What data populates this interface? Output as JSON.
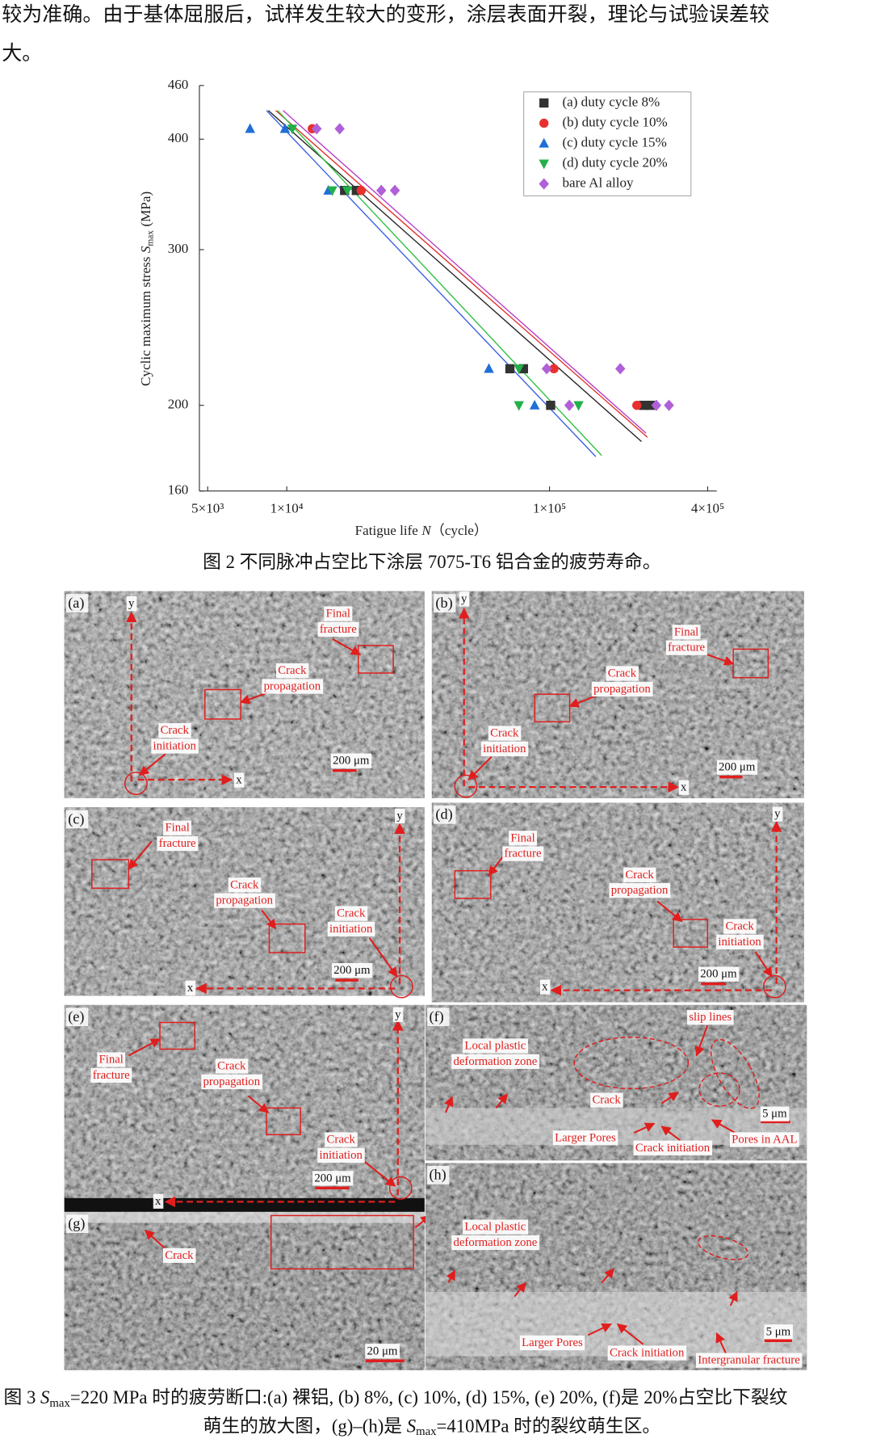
{
  "text": {
    "lines": [
      "较为准确。由于基体屈服后，试样发生较大的变形，涂层表面开裂，理论与试验误差较",
      "大。"
    ]
  },
  "chart_data": {
    "type": "scatter",
    "log_x": true,
    "log_y": true,
    "xlabel": "Fatigue life",
    "xlabel_symbol": "N",
    "xlabel_unit": "（cycle）",
    "ylabel": "Cyclic maximum stress",
    "ylabel_symbol": "S",
    "ylabel_sub": "max",
    "ylabel_unit": "(MPa)",
    "xlim": [
      4650,
      433000
    ],
    "ylim": [
      160,
      460
    ],
    "xticks": [
      {
        "value": 5000,
        "label": "5×10³"
      },
      {
        "value": 10000,
        "label": "1×10⁴"
      },
      {
        "value": 100000,
        "label": "1×10⁵"
      },
      {
        "value": 400000,
        "label": "4×10⁵"
      }
    ],
    "yticks": [
      160,
      200,
      300,
      400,
      460
    ],
    "legend": "upper right",
    "series": [
      {
        "name": "(a) duty cycle 8%",
        "color": "#333333",
        "line_color": "#222222",
        "marker": "square",
        "x": [
          16600,
          18400,
          70700,
          79600,
          101000,
          228000,
          242000
        ],
        "values": [
          350,
          350,
          220,
          220,
          200,
          200,
          200
        ],
        "fit_x": [
          8510,
          224000
        ],
        "fit_y": [
          431,
          182
        ]
      },
      {
        "name": "(b) duty cycle 10%",
        "color": "#e8312f",
        "line_color": "#e0302a",
        "marker": "circle",
        "x": [
          12500,
          19200,
          104000,
          215000
        ],
        "values": [
          411,
          350,
          220,
          200
        ],
        "fit_x": [
          9080,
          236000
        ],
        "fit_y": [
          431,
          184
        ]
      },
      {
        "name": "(c) duty cycle 15%",
        "color": "#1f6fd6",
        "line_color": "#3a5fe0",
        "marker": "triangle",
        "x": [
          7250,
          9840,
          14400,
          58800,
          87800
        ],
        "values": [
          411,
          411,
          350,
          220,
          200
        ],
        "fit_x": [
          8370,
          150000
        ],
        "fit_y": [
          431,
          175
        ]
      },
      {
        "name": "(d) duty cycle 20%",
        "color": "#22b04a",
        "line_color": "#2ec040",
        "marker": "down",
        "x": [
          10500,
          14900,
          17000,
          76500,
          76500,
          129000
        ],
        "values": [
          411,
          350,
          350,
          220,
          200,
          200
        ],
        "fit_x": [
          9230,
          158000
        ],
        "fit_y": [
          431,
          175.5
        ]
      },
      {
        "name": "bare Al alloy",
        "color": "#b060d8",
        "line_color": "#b83cc8",
        "marker": "diamond",
        "x": [
          13000,
          15900,
          22900,
          25800,
          97600,
          186000,
          119000,
          255000,
          285000
        ],
        "values": [
          411,
          411,
          350,
          350,
          220,
          220,
          200,
          200,
          200
        ],
        "fit_x": [
          9680,
          233000
        ],
        "fit_y": [
          431,
          186
        ]
      }
    ]
  },
  "caption2": "图 2 不同脉冲占空比下涂层 7075-T6 铝合金的疲劳寿命。",
  "panels": [
    {
      "letter": "(a)",
      "labels": [
        [
          "Final",
          "fracture"
        ],
        [
          "Crack",
          "propagation"
        ],
        [
          "Crack",
          "initiation"
        ],
        [
          "200 μm"
        ],
        [
          "x"
        ],
        [
          "y"
        ]
      ]
    },
    {
      "letter": "(b)",
      "labels": [
        [
          "Final",
          "fracture"
        ],
        [
          "Crack",
          "propagation"
        ],
        [
          "Crack",
          "initiation"
        ],
        [
          "200 μm"
        ],
        [
          "x"
        ],
        [
          "y"
        ]
      ]
    },
    {
      "letter": "(c)",
      "labels": [
        [
          "Final",
          "fracture"
        ],
        [
          "Crack",
          "propagation"
        ],
        [
          "Crack",
          "initiation"
        ],
        [
          "200 μm"
        ],
        [
          "x"
        ],
        [
          "y"
        ]
      ]
    },
    {
      "letter": "(d)",
      "labels": [
        [
          "Final",
          "fracture"
        ],
        [
          "Crack",
          "propagation"
        ],
        [
          "Crack",
          "initiation"
        ],
        [
          "200 μm"
        ],
        [
          "x"
        ],
        [
          "y"
        ]
      ]
    },
    {
      "letter": "(e)",
      "labels": [
        [
          "Final",
          "fracture"
        ],
        [
          "Crack",
          "propagation"
        ],
        [
          "Crack",
          "initiation"
        ],
        [
          "200 μm"
        ],
        [
          "x"
        ],
        [
          "y"
        ]
      ]
    },
    {
      "letter": "(f)",
      "labels": [
        [
          "Local plastic",
          "deformation zone"
        ],
        [
          "slip lines"
        ],
        [
          "Crack"
        ],
        [
          "Larger Pores"
        ],
        [
          "Crack initiation"
        ],
        [
          "Pores in AAL"
        ],
        [
          "5 μm"
        ]
      ]
    },
    {
      "letter": "(g)",
      "labels": [
        [
          "Crack"
        ],
        [
          "20 μm"
        ]
      ]
    },
    {
      "letter": "(h)",
      "labels": [
        [
          "Local plastic",
          "deformation zone"
        ],
        [
          "Larger Pores"
        ],
        [
          "Crack initiation"
        ],
        [
          "Intergranular fracture"
        ],
        [
          "5 μm"
        ]
      ]
    }
  ],
  "caption3": {
    "line1": [
      "图 3 ",
      "S",
      "max",
      "=220 MPa 时的疲劳断口:(a)  裸铝, (b) 8%, (c) 10%, (d) 15%, (e) 20%, (f)是 20%占空比下裂纹"
    ],
    "line2": [
      "萌生的放大图，(g)–(h)是 ",
      "S",
      "max",
      "=410MPa 时的裂纹萌生区。"
    ]
  }
}
